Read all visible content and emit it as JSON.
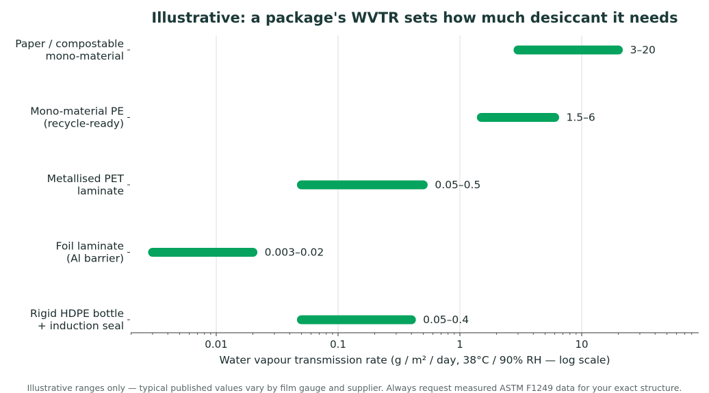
{
  "chart_data": {
    "type": "bar",
    "orientation": "horizontal-range",
    "title": "Illustrative: a package's WVTR sets how much desiccant it needs",
    "xlabel": "Water vapour transmission rate  (g / m² / day, 38°C / 90% RH — log scale)",
    "ylabel": "",
    "x_scale": "log",
    "xlim": [
      0.002,
      80
    ],
    "grid": "vertical-major",
    "x_ticks": [
      0.01,
      0.1,
      1,
      10
    ],
    "x_tick_labels": [
      "0.01",
      "0.1",
      "1",
      "10"
    ],
    "categories": [
      "Paper / compostable\nmono-material",
      "Mono-material PE\n(recycle-ready)",
      "Metallised PET\nlaminate",
      "Foil laminate\n(Al barrier)",
      "Rigid HDPE bottle\n+ induction seal"
    ],
    "ranges": [
      {
        "low": 3,
        "high": 20,
        "label": "3–20"
      },
      {
        "low": 1.5,
        "high": 6,
        "label": "1.5–6"
      },
      {
        "low": 0.05,
        "high": 0.5,
        "label": "0.05–0.5"
      },
      {
        "low": 0.003,
        "high": 0.02,
        "label": "0.003–0.02"
      },
      {
        "low": 0.05,
        "high": 0.4,
        "label": "0.05–0.4"
      }
    ],
    "bar_color": "#05a35e",
    "grid_color": "#dcdcdc",
    "axis_color": "#333333",
    "footnote": "Illustrative ranges only — typical published values vary by film gauge and supplier. Always request measured ASTM F1249 data for your exact structure."
  }
}
